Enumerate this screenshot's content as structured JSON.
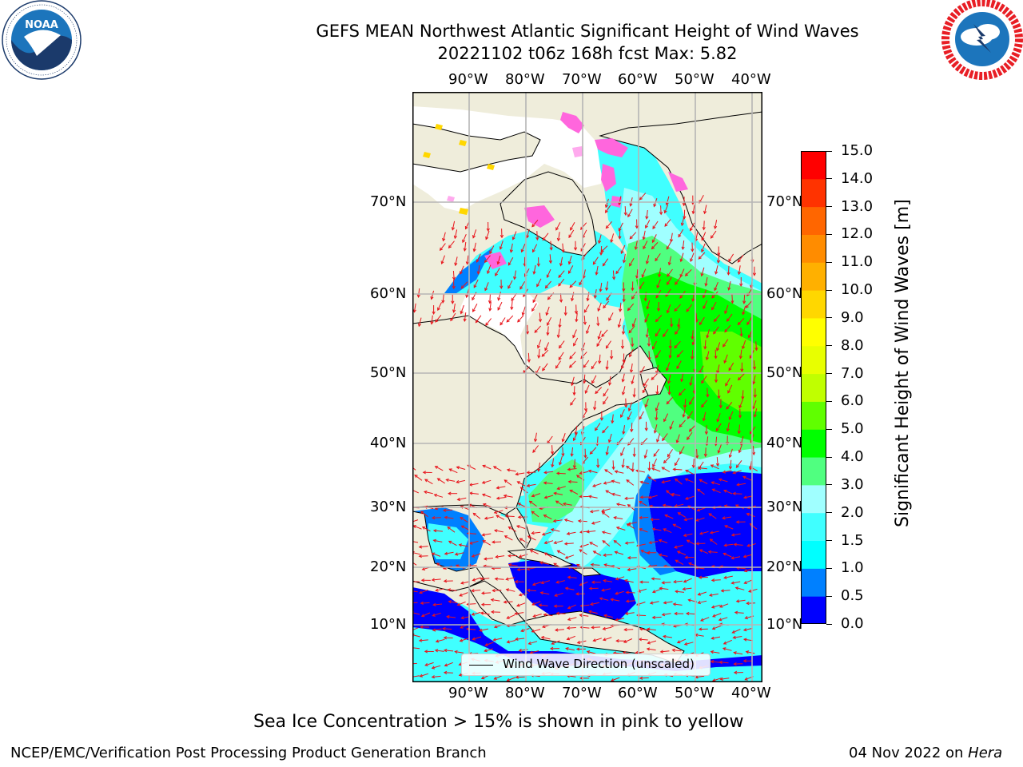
{
  "title": {
    "line1": "GEFS MEAN Northwest Atlantic Significant Height of Wind Waves",
    "line2": "20221102 t06z 168h fcst   Max: 5.82"
  },
  "logos": {
    "left": {
      "name": "NOAA",
      "ring_text": "NATIONAL OCEANIC AND ATMOSPHERIC ADMINISTRATION · U.S. DEPARTMENT OF COMMERCE",
      "colors": {
        "ring": "#ffffff",
        "inner": "#1c75bc",
        "dark": "#1b3a6b"
      }
    },
    "right": {
      "ring_text": "NATIONAL WEATHER SERVICE",
      "colors": {
        "ring": "#e81e25",
        "inner": "#1c75bc"
      }
    }
  },
  "map": {
    "lon_labels_top": [
      "90°W",
      "80°W",
      "70°W",
      "60°W",
      "50°W",
      "40°W"
    ],
    "lon_labels_bottom": [
      "90°W",
      "80°W",
      "70°W",
      "60°W",
      "50°W",
      "40°W"
    ],
    "lat_labels_left": [
      "70°N",
      "60°N",
      "50°N",
      "40°N",
      "30°N",
      "20°N",
      "10°N"
    ],
    "lat_labels_right": [
      "70°N",
      "60°N",
      "50°N",
      "40°N",
      "30°N",
      "20°N",
      "10°N"
    ],
    "land_color": "#efeddb",
    "grid_color": "#b5b5b5",
    "arrow_color": "#e8141b",
    "legend_label": "Wind Wave Direction (unscaled)"
  },
  "colorbar": {
    "label": "Significant Height of Wind Waves [m]",
    "ticks": [
      "0.0",
      "0.5",
      "1.0",
      "1.5",
      "2.0",
      "3.0",
      "4.0",
      "5.0",
      "6.0",
      "7.0",
      "8.0",
      "9.0",
      "10.0",
      "11.0",
      "12.0",
      "13.0",
      "14.0",
      "15.0"
    ],
    "colors": [
      "#0000ff",
      "#0080ff",
      "#00ffff",
      "#40ffff",
      "#a0ffff",
      "#50ff80",
      "#00ff00",
      "#60ff00",
      "#c0ff00",
      "#e8ff00",
      "#ffff00",
      "#ffd700",
      "#ffb000",
      "#ff8c00",
      "#ff6600",
      "#ff3300",
      "#ff0000"
    ]
  },
  "caption": "Sea Ice Concentration > 15% is shown in pink to yellow",
  "footer": {
    "left": "NCEP/EMC/Verification Post Processing Product Generation Branch",
    "right_date": "04 Nov 2022 on",
    "right_host": "Hera"
  }
}
